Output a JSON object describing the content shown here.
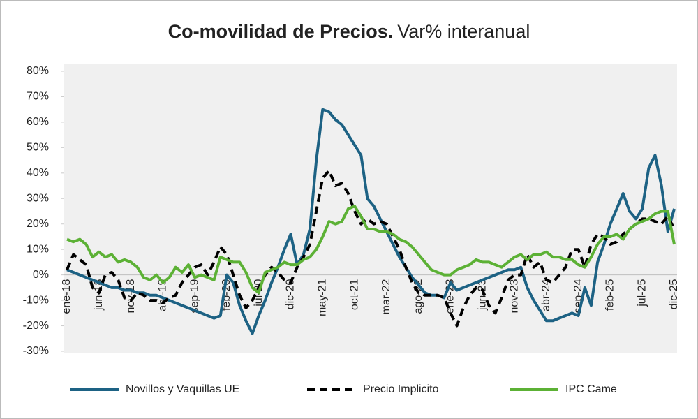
{
  "chart_data": {
    "type": "line",
    "title": "Co-movilidad de Precios.",
    "subtitle": "Var% interanual",
    "categories": [
      "ene-18",
      null,
      null,
      null,
      null,
      "jun-18",
      null,
      null,
      null,
      null,
      "nov-18",
      null,
      null,
      null,
      null,
      "abr-19",
      null,
      null,
      null,
      null,
      "sep-19",
      null,
      null,
      null,
      null,
      "feb-20",
      null,
      null,
      null,
      null,
      "jul-20",
      null,
      null,
      null,
      null,
      "dic-20",
      null,
      null,
      null,
      null,
      "may-21",
      null,
      null,
      null,
      null,
      "oct-21",
      null,
      null,
      null,
      null,
      "mar-22",
      null,
      null,
      null,
      null,
      "ago-22",
      null,
      null,
      null,
      null,
      "ene-23",
      null,
      null,
      null,
      null,
      "jun-23",
      null,
      null,
      null,
      null,
      "nov-23",
      null,
      null,
      null,
      null,
      "abr-24",
      null,
      null,
      null,
      null,
      "sep-24",
      null,
      null,
      null,
      null,
      "feb-25",
      null,
      null,
      null,
      null,
      "jul-25",
      null,
      null,
      null,
      null,
      "dic-25"
    ],
    "series": [
      {
        "name": "Novillos y Vaquillas UE",
        "color": "#1d6284",
        "line_style": "solid",
        "values": [
          2,
          1,
          0,
          -1,
          -2,
          -3,
          -4,
          -5,
          -5,
          -6,
          -6,
          -7,
          -7,
          -8,
          -8,
          -9,
          -10,
          -11,
          -12,
          -13,
          -14,
          -15,
          -16,
          -17,
          -16,
          0,
          -3,
          -12,
          -18,
          -23,
          -16,
          -10,
          -3,
          3,
          10,
          16,
          4,
          8,
          18,
          45,
          65,
          64,
          61,
          59,
          55,
          51,
          47,
          30,
          27,
          22,
          17,
          12,
          7,
          3,
          -1,
          -4,
          -7,
          -8,
          -8,
          -9,
          -3,
          -6,
          -5,
          -4,
          -3,
          -2,
          -1,
          0,
          1,
          2,
          2,
          3,
          -5,
          -10,
          -14,
          -18,
          -18,
          -17,
          -16,
          -15,
          -16,
          -5,
          -12,
          5,
          12,
          20,
          26,
          32,
          25,
          22,
          26,
          42,
          47,
          35,
          17,
          26
        ]
      },
      {
        "name": "Precio Implicito",
        "color": "#000000",
        "line_style": "dashed",
        "values": [
          2,
          8,
          6,
          4,
          -5,
          -7,
          0,
          1,
          -2,
          -9,
          -10,
          -7,
          -8,
          -10,
          -10,
          -11,
          -9,
          -8,
          -3,
          0,
          3,
          4,
          0,
          5,
          11,
          8,
          0,
          -8,
          -13,
          -10,
          -5,
          0,
          3,
          1,
          -2,
          -3,
          3,
          7,
          12,
          25,
          38,
          41,
          35,
          36,
          32,
          25,
          20,
          22,
          20,
          21,
          20,
          15,
          10,
          3,
          -3,
          -7,
          -8,
          -8,
          -8,
          -9,
          -15,
          -20,
          -13,
          -8,
          -5,
          -6,
          -12,
          -15,
          -9,
          -2,
          0,
          0,
          8,
          3,
          5,
          -2,
          -3,
          0,
          3,
          10,
          10,
          3,
          12,
          16,
          15,
          12,
          13,
          16,
          18,
          20,
          22,
          22,
          21,
          20,
          23,
          18
        ]
      },
      {
        "name": "IPC Came",
        "color": "#5cb135",
        "line_style": "solid",
        "values": [
          14,
          13,
          14,
          12,
          7,
          9,
          7,
          8,
          5,
          6,
          5,
          3,
          -1,
          -2,
          0,
          -3,
          -1,
          3,
          1,
          4,
          -1,
          0,
          -1,
          -2,
          7,
          6,
          5,
          5,
          1,
          -5,
          -7,
          1,
          2,
          3,
          5,
          4,
          4,
          6,
          7,
          10,
          15,
          21,
          20,
          21,
          26,
          27,
          23,
          18,
          18,
          17,
          17,
          16,
          14,
          13,
          11,
          8,
          5,
          2,
          1,
          0,
          0,
          2,
          3,
          4,
          6,
          5,
          5,
          4,
          3,
          5,
          7,
          8,
          6,
          8,
          8,
          9,
          7,
          7,
          6,
          6,
          4,
          3,
          7,
          12,
          15,
          15,
          16,
          14,
          18,
          20,
          21,
          22,
          24,
          25,
          25,
          12
        ]
      }
    ],
    "ylim": [
      -30,
      80
    ],
    "yticks": [
      {
        "value": -30,
        "label": "-30%"
      },
      {
        "value": -20,
        "label": "-20%"
      },
      {
        "value": -10,
        "label": "-10%"
      },
      {
        "value": 0,
        "label": "0%"
      },
      {
        "value": 10,
        "label": "10%"
      },
      {
        "value": 20,
        "label": "20%"
      },
      {
        "value": 30,
        "label": "30%"
      },
      {
        "value": 40,
        "label": "40%"
      },
      {
        "value": 50,
        "label": "50%"
      },
      {
        "value": 60,
        "label": "60%"
      },
      {
        "value": 70,
        "label": "70%"
      },
      {
        "value": 80,
        "label": "80%"
      }
    ],
    "legend": "bottom"
  }
}
